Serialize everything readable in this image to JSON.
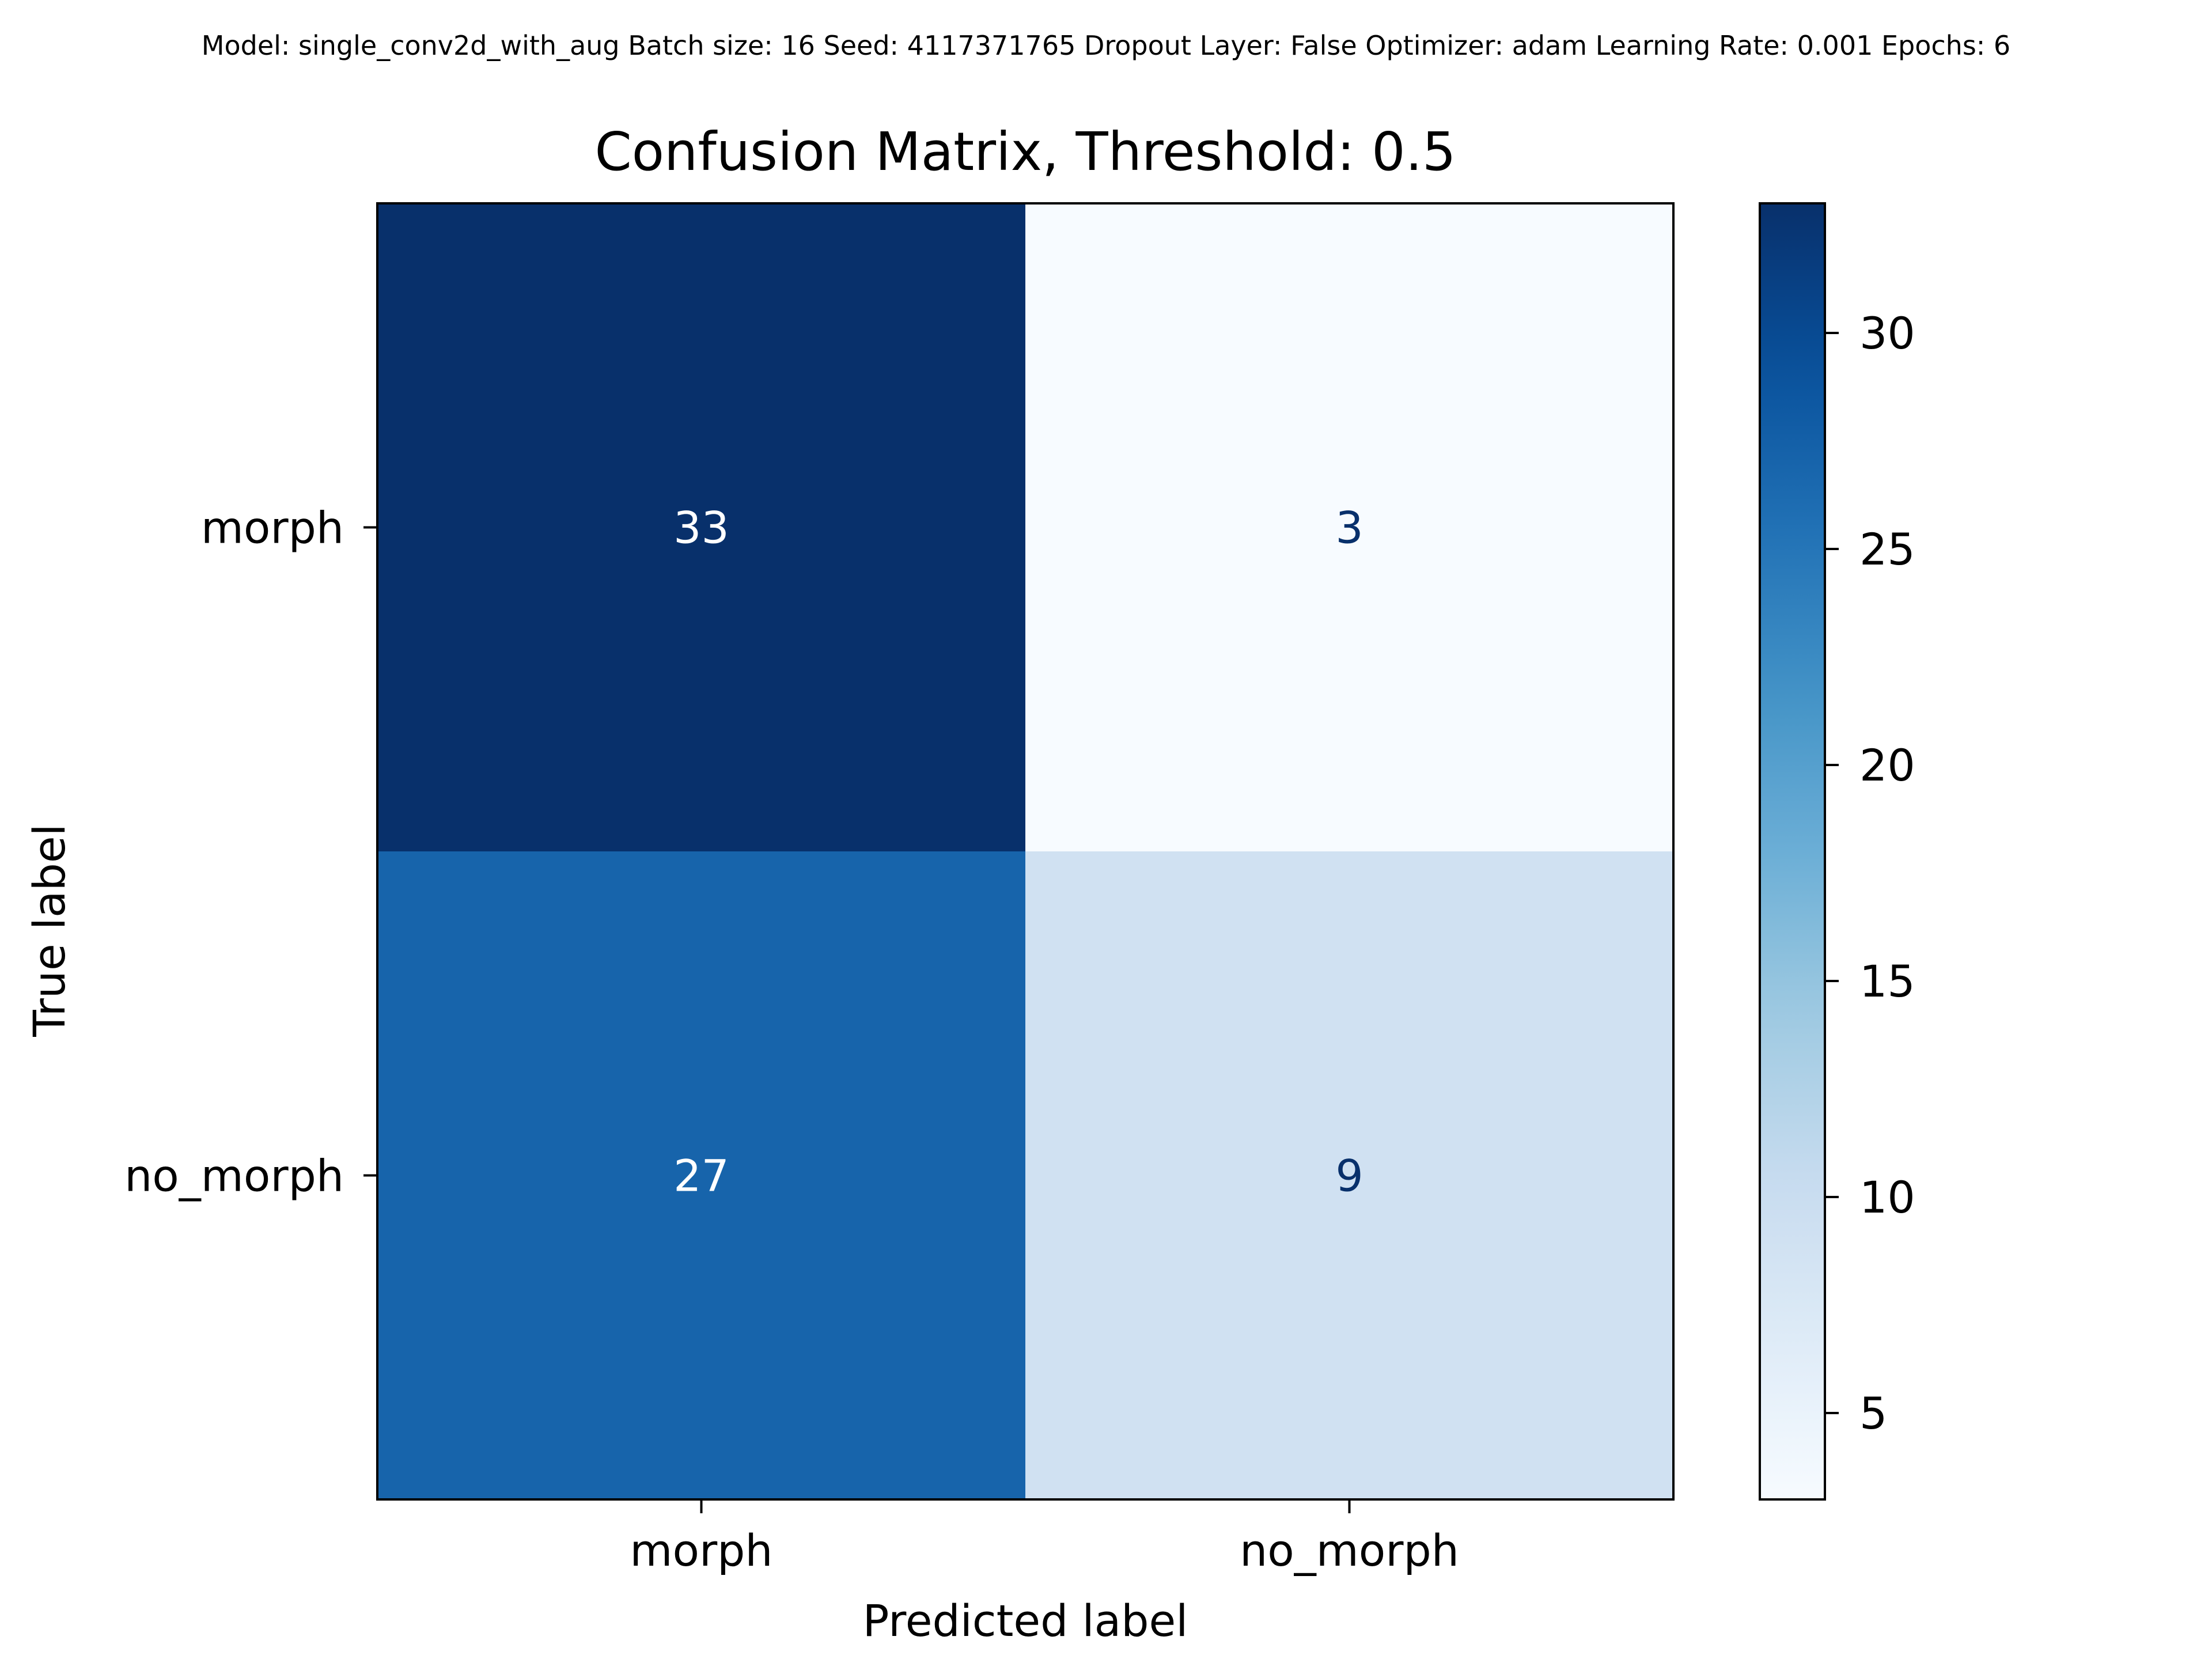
{
  "header": {
    "suptitle": "Model: single_conv2d_with_aug  Batch size: 16  Seed: 4117371765  Dropout Layer: False  Optimizer: adam  Learning Rate: 0.001  Epochs: 6"
  },
  "chart_data": {
    "type": "heatmap",
    "title": "Confusion Matrix, Threshold: 0.5",
    "xlabel": "Predicted label",
    "ylabel": "True label",
    "x_categories": [
      "morph",
      "no_morph"
    ],
    "y_categories": [
      "morph",
      "no_morph"
    ],
    "values": [
      [
        33,
        3
      ],
      [
        27,
        9
      ]
    ],
    "colormap": "Blues",
    "colorbar": {
      "range": [
        3,
        33
      ],
      "ticks": [
        5,
        10,
        15,
        20,
        25,
        30
      ]
    },
    "text_colors": {
      "dark_cell": "#ffffff",
      "light_cell": "#08306b"
    },
    "grid": false
  }
}
